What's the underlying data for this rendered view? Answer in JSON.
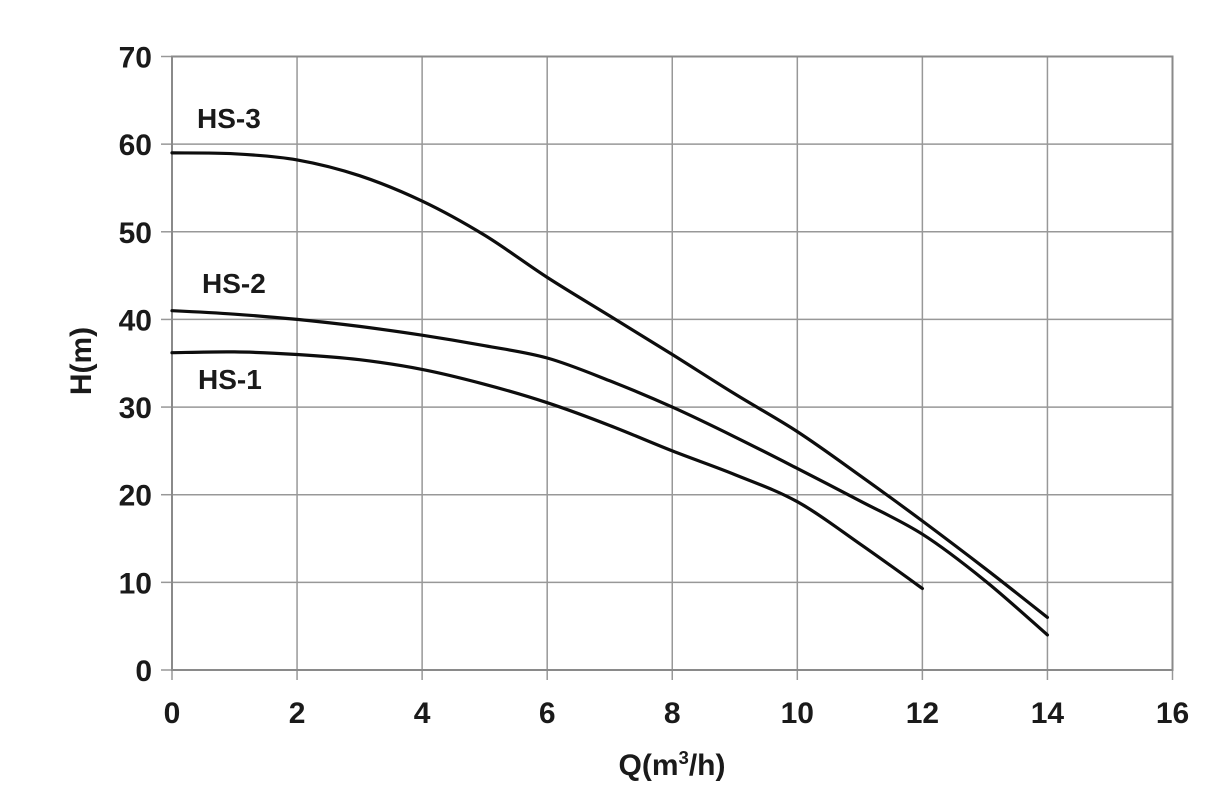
{
  "chart_data": {
    "type": "line",
    "title": "",
    "xlabel": "Q(m³/h)",
    "xlabel_base": "Q(m",
    "xlabel_sup": "3",
    "xlabel_tail": "/h)",
    "ylabel": "H(m)",
    "xlim": [
      0,
      16
    ],
    "ylim": [
      0,
      70
    ],
    "xticks": [
      0,
      2,
      4,
      6,
      8,
      10,
      12,
      14,
      16
    ],
    "yticks": [
      0,
      10,
      20,
      30,
      40,
      50,
      60,
      70
    ],
    "grid": true,
    "legend_position": "inline-labels-near-curve-start",
    "series": [
      {
        "name": "HS-3",
        "points": [
          [
            0,
            59
          ],
          [
            1,
            58.9
          ],
          [
            2,
            58.2
          ],
          [
            3,
            56.4
          ],
          [
            4,
            53.5
          ],
          [
            5,
            49.6
          ],
          [
            6,
            44.8
          ],
          [
            7,
            40.4
          ],
          [
            8,
            36
          ],
          [
            9,
            31.5
          ],
          [
            10,
            27.2
          ],
          [
            11,
            22.2
          ],
          [
            12,
            17
          ],
          [
            13,
            11.6
          ],
          [
            14,
            6
          ]
        ]
      },
      {
        "name": "HS-2",
        "points": [
          [
            0,
            41
          ],
          [
            1,
            40.6
          ],
          [
            2,
            40
          ],
          [
            3,
            39.2
          ],
          [
            4,
            38.2
          ],
          [
            5,
            37
          ],
          [
            6,
            35.6
          ],
          [
            7,
            33
          ],
          [
            8,
            30
          ],
          [
            9,
            26.6
          ],
          [
            10,
            23
          ],
          [
            11,
            19.3
          ],
          [
            12,
            15.5
          ],
          [
            13,
            10.2
          ],
          [
            14,
            4
          ]
        ]
      },
      {
        "name": "HS-1",
        "points": [
          [
            0,
            36.2
          ],
          [
            1,
            36.3
          ],
          [
            2,
            36
          ],
          [
            3,
            35.4
          ],
          [
            4,
            34.3
          ],
          [
            5,
            32.6
          ],
          [
            6,
            30.5
          ],
          [
            7,
            27.9
          ],
          [
            8,
            25
          ],
          [
            9,
            22.3
          ],
          [
            10,
            19.2
          ],
          [
            11,
            14.4
          ],
          [
            12,
            9.3
          ]
        ]
      }
    ],
    "colors": {
      "curve": "#0d0d0d",
      "grid": "#989898",
      "border": "#8a8a8a",
      "text": "#1a1a1a",
      "background": "#ffffff"
    }
  }
}
